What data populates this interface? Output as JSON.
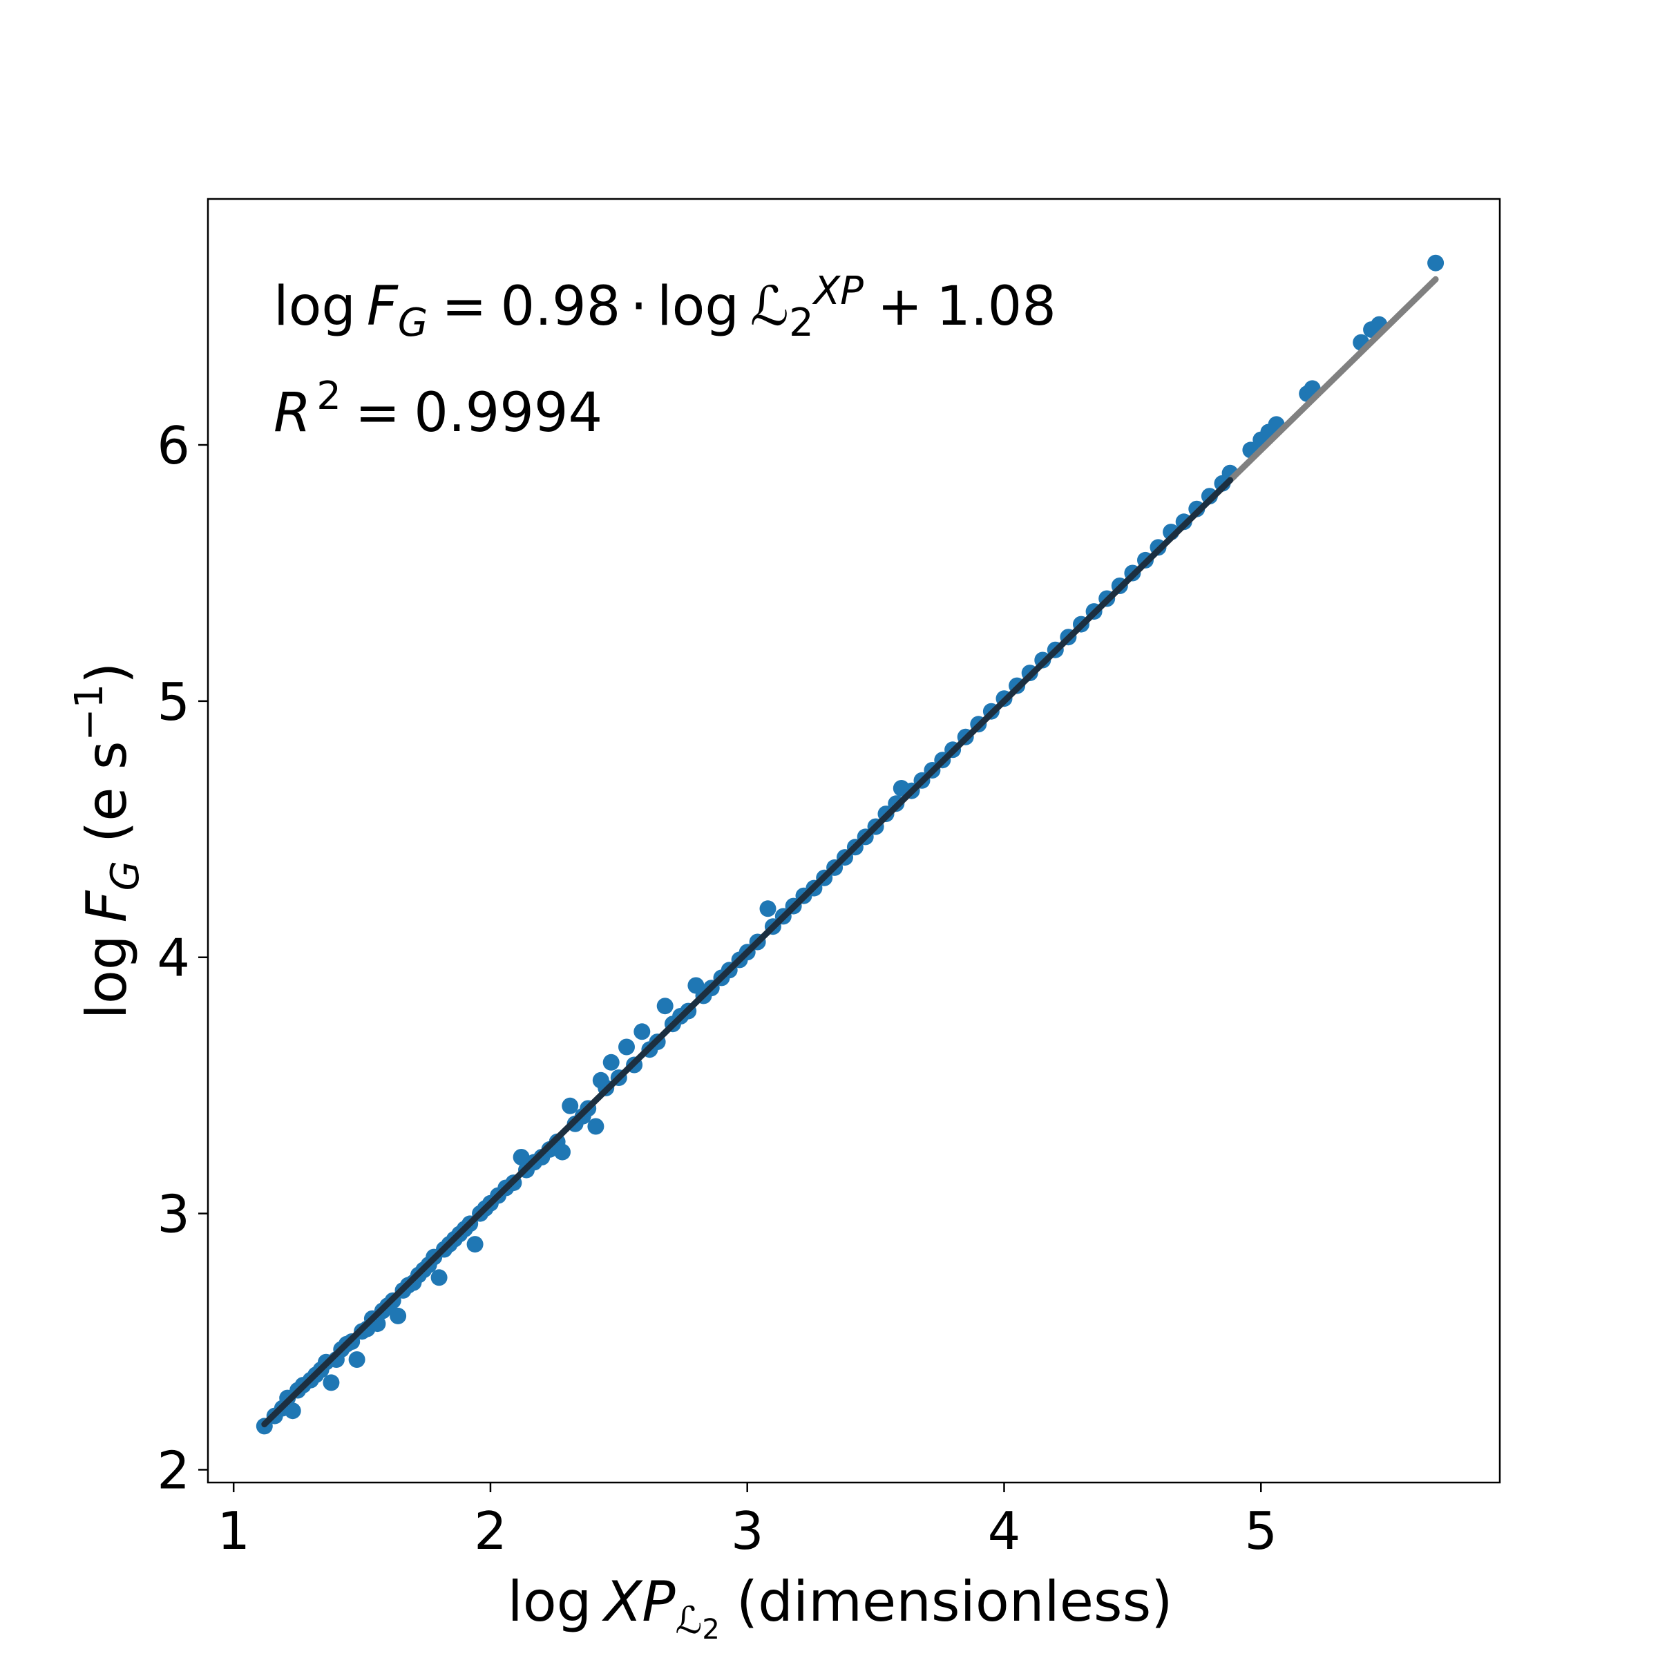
{
  "colors": {
    "points": "#1f77b4",
    "fit_line": "#808080",
    "trend_line": "#1c2f40",
    "axes": "#000000",
    "background": "#ffffff"
  },
  "annotations": {
    "equation": {
      "lhs_prefix": "log",
      "lhs_var": "F",
      "lhs_sub": "G",
      "equals": "=",
      "coef": "0.98",
      "dot": "·",
      "rhs_prefix": "log",
      "rhs_var": "ℒ",
      "rhs_sub": "2",
      "rhs_sup": "XP",
      "plus": "+",
      "intercept": "1.08"
    },
    "r2": {
      "var": "R",
      "sup": "2",
      "equals": "=",
      "value": "0.9994"
    }
  },
  "axes": {
    "xlabel": {
      "prefix": "log",
      "var": "XP",
      "sub": "ℒ",
      "subsub": "2",
      "suffix": "(dimensionless)"
    },
    "ylabel": {
      "prefix": "log",
      "var": "F",
      "sub": "G",
      "unit_open": "(e s",
      "unit_sup": "−1",
      "unit_close": ")"
    }
  },
  "chart_data": {
    "type": "scatter",
    "x_ticks": [
      "1",
      "2",
      "3",
      "4",
      "5"
    ],
    "y_ticks": [
      "2",
      "3",
      "4",
      "5",
      "6"
    ],
    "xlim": [
      0.9,
      5.93
    ],
    "ylim": [
      1.95,
      6.96
    ],
    "grid": false,
    "legend": "none",
    "fit": {
      "slope": 0.98,
      "intercept": 1.08,
      "r2": 0.9994,
      "x_range": [
        1.12,
        5.68
      ]
    },
    "series": [
      {
        "points": [
          [
            1.12,
            2.17
          ],
          [
            1.16,
            2.21
          ],
          [
            1.19,
            2.24
          ],
          [
            1.21,
            2.28
          ],
          [
            1.23,
            2.23
          ],
          [
            1.25,
            2.31
          ],
          [
            1.27,
            2.33
          ],
          [
            1.3,
            2.35
          ],
          [
            1.32,
            2.37
          ],
          [
            1.34,
            2.39
          ],
          [
            1.36,
            2.42
          ],
          [
            1.38,
            2.34
          ],
          [
            1.4,
            2.43
          ],
          [
            1.42,
            2.47
          ],
          [
            1.44,
            2.49
          ],
          [
            1.46,
            2.5
          ],
          [
            1.48,
            2.43
          ],
          [
            1.5,
            2.54
          ],
          [
            1.52,
            2.55
          ],
          [
            1.54,
            2.59
          ],
          [
            1.56,
            2.57
          ],
          [
            1.58,
            2.62
          ],
          [
            1.6,
            2.64
          ],
          [
            1.62,
            2.66
          ],
          [
            1.64,
            2.6
          ],
          [
            1.66,
            2.7
          ],
          [
            1.68,
            2.72
          ],
          [
            1.7,
            2.73
          ],
          [
            1.72,
            2.76
          ],
          [
            1.74,
            2.78
          ],
          [
            1.76,
            2.8
          ],
          [
            1.78,
            2.83
          ],
          [
            1.8,
            2.75
          ],
          [
            1.82,
            2.86
          ],
          [
            1.84,
            2.88
          ],
          [
            1.86,
            2.9
          ],
          [
            1.88,
            2.92
          ],
          [
            1.9,
            2.94
          ],
          [
            1.92,
            2.96
          ],
          [
            1.94,
            2.88
          ],
          [
            1.96,
            3.0
          ],
          [
            1.98,
            3.02
          ],
          [
            2.0,
            3.04
          ],
          [
            2.03,
            3.07
          ],
          [
            2.06,
            3.1
          ],
          [
            2.09,
            3.12
          ],
          [
            2.12,
            3.22
          ],
          [
            2.14,
            3.17
          ],
          [
            2.17,
            3.2
          ],
          [
            2.2,
            3.22
          ],
          [
            2.23,
            3.25
          ],
          [
            2.26,
            3.28
          ],
          [
            2.28,
            3.24
          ],
          [
            2.31,
            3.42
          ],
          [
            2.33,
            3.35
          ],
          [
            2.36,
            3.38
          ],
          [
            2.38,
            3.41
          ],
          [
            2.41,
            3.34
          ],
          [
            2.43,
            3.52
          ],
          [
            2.45,
            3.49
          ],
          [
            2.47,
            3.59
          ],
          [
            2.5,
            3.53
          ],
          [
            2.53,
            3.65
          ],
          [
            2.56,
            3.58
          ],
          [
            2.59,
            3.71
          ],
          [
            2.62,
            3.64
          ],
          [
            2.65,
            3.67
          ],
          [
            2.68,
            3.81
          ],
          [
            2.71,
            3.74
          ],
          [
            2.74,
            3.77
          ],
          [
            2.77,
            3.79
          ],
          [
            2.8,
            3.89
          ],
          [
            2.83,
            3.85
          ],
          [
            2.86,
            3.88
          ],
          [
            2.9,
            3.92
          ],
          [
            2.93,
            3.95
          ],
          [
            2.97,
            3.99
          ],
          [
            3.0,
            4.02
          ],
          [
            3.04,
            4.06
          ],
          [
            3.08,
            4.19
          ],
          [
            3.1,
            4.12
          ],
          [
            3.14,
            4.16
          ],
          [
            3.18,
            4.2
          ],
          [
            3.22,
            4.24
          ],
          [
            3.26,
            4.27
          ],
          [
            3.3,
            4.31
          ],
          [
            3.34,
            4.35
          ],
          [
            3.38,
            4.39
          ],
          [
            3.42,
            4.43
          ],
          [
            3.46,
            4.47
          ],
          [
            3.5,
            4.51
          ],
          [
            3.54,
            4.56
          ],
          [
            3.58,
            4.6
          ],
          [
            3.6,
            4.66
          ],
          [
            3.64,
            4.65
          ],
          [
            3.68,
            4.69
          ],
          [
            3.72,
            4.73
          ],
          [
            3.76,
            4.77
          ],
          [
            3.8,
            4.81
          ],
          [
            3.85,
            4.86
          ],
          [
            3.9,
            4.91
          ],
          [
            3.95,
            4.96
          ],
          [
            4.0,
            5.01
          ],
          [
            4.05,
            5.06
          ],
          [
            4.1,
            5.11
          ],
          [
            4.15,
            5.16
          ],
          [
            4.2,
            5.2
          ],
          [
            4.25,
            5.25
          ],
          [
            4.3,
            5.3
          ],
          [
            4.35,
            5.35
          ],
          [
            4.4,
            5.4
          ],
          [
            4.45,
            5.45
          ],
          [
            4.5,
            5.5
          ],
          [
            4.55,
            5.55
          ],
          [
            4.6,
            5.6
          ],
          [
            4.65,
            5.66
          ],
          [
            4.7,
            5.7
          ],
          [
            4.75,
            5.75
          ],
          [
            4.8,
            5.8
          ],
          [
            4.85,
            5.85
          ],
          [
            4.88,
            5.89
          ],
          [
            4.96,
            5.98
          ],
          [
            5.0,
            6.02
          ],
          [
            5.03,
            6.05
          ],
          [
            5.06,
            6.08
          ],
          [
            5.18,
            6.2
          ],
          [
            5.2,
            6.22
          ],
          [
            5.39,
            6.4
          ],
          [
            5.43,
            6.45
          ],
          [
            5.46,
            6.47
          ],
          [
            5.68,
            6.71
          ]
        ]
      }
    ]
  }
}
